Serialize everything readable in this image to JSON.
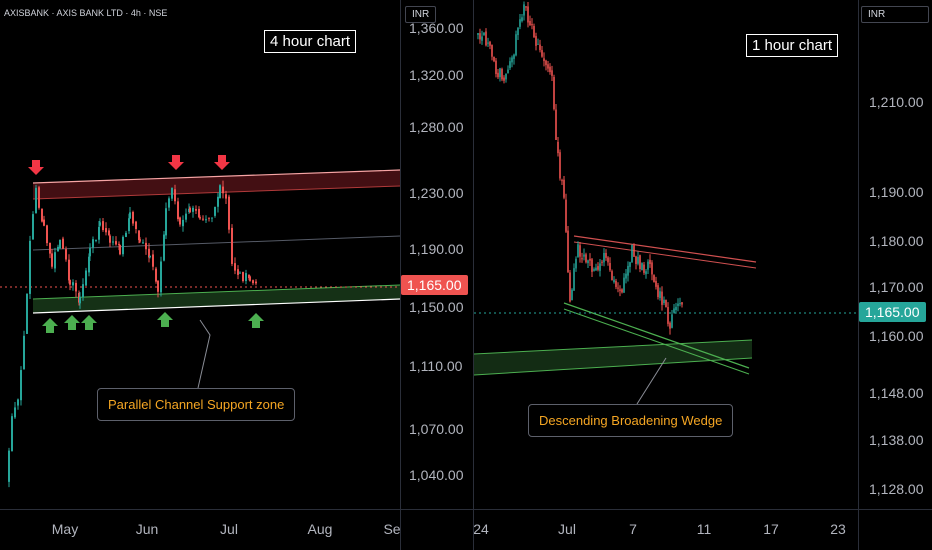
{
  "left_chart": {
    "symbol": "AXISBANK · AXIS BANK LTD · 4h · NSE",
    "title": "4 hour chart",
    "currency_button": "INR",
    "price_axis": [
      "1,360.00",
      "1,320.00",
      "1,280.00",
      "1,230.00",
      "1,190.00",
      "1,150.00",
      "1,110.00",
      "1,070.00",
      "1,040.00"
    ],
    "current_price": "1,165.00",
    "time_axis": [
      "May",
      "Jun",
      "Jul",
      "Aug",
      "Se"
    ],
    "annotation": "Parallel Channel Support zone",
    "colors": {
      "up": "#26a69a",
      "down": "#ef5350",
      "resistance": "#f23645",
      "support": "#4caf50",
      "note": "#f5a623"
    }
  },
  "right_chart": {
    "title": "1 hour chart",
    "currency_button": "INR",
    "price_axis": [
      "1,210.00",
      "1,190.00",
      "1,180.00",
      "1,170.00",
      "1,160.00",
      "1,148.00",
      "1,138.00",
      "1,128.00"
    ],
    "current_price": "1,165.00",
    "time_axis": [
      "24",
      "Jul",
      "7",
      "11",
      "17",
      "23"
    ],
    "annotation": "Descending Broadening Wedge"
  }
}
